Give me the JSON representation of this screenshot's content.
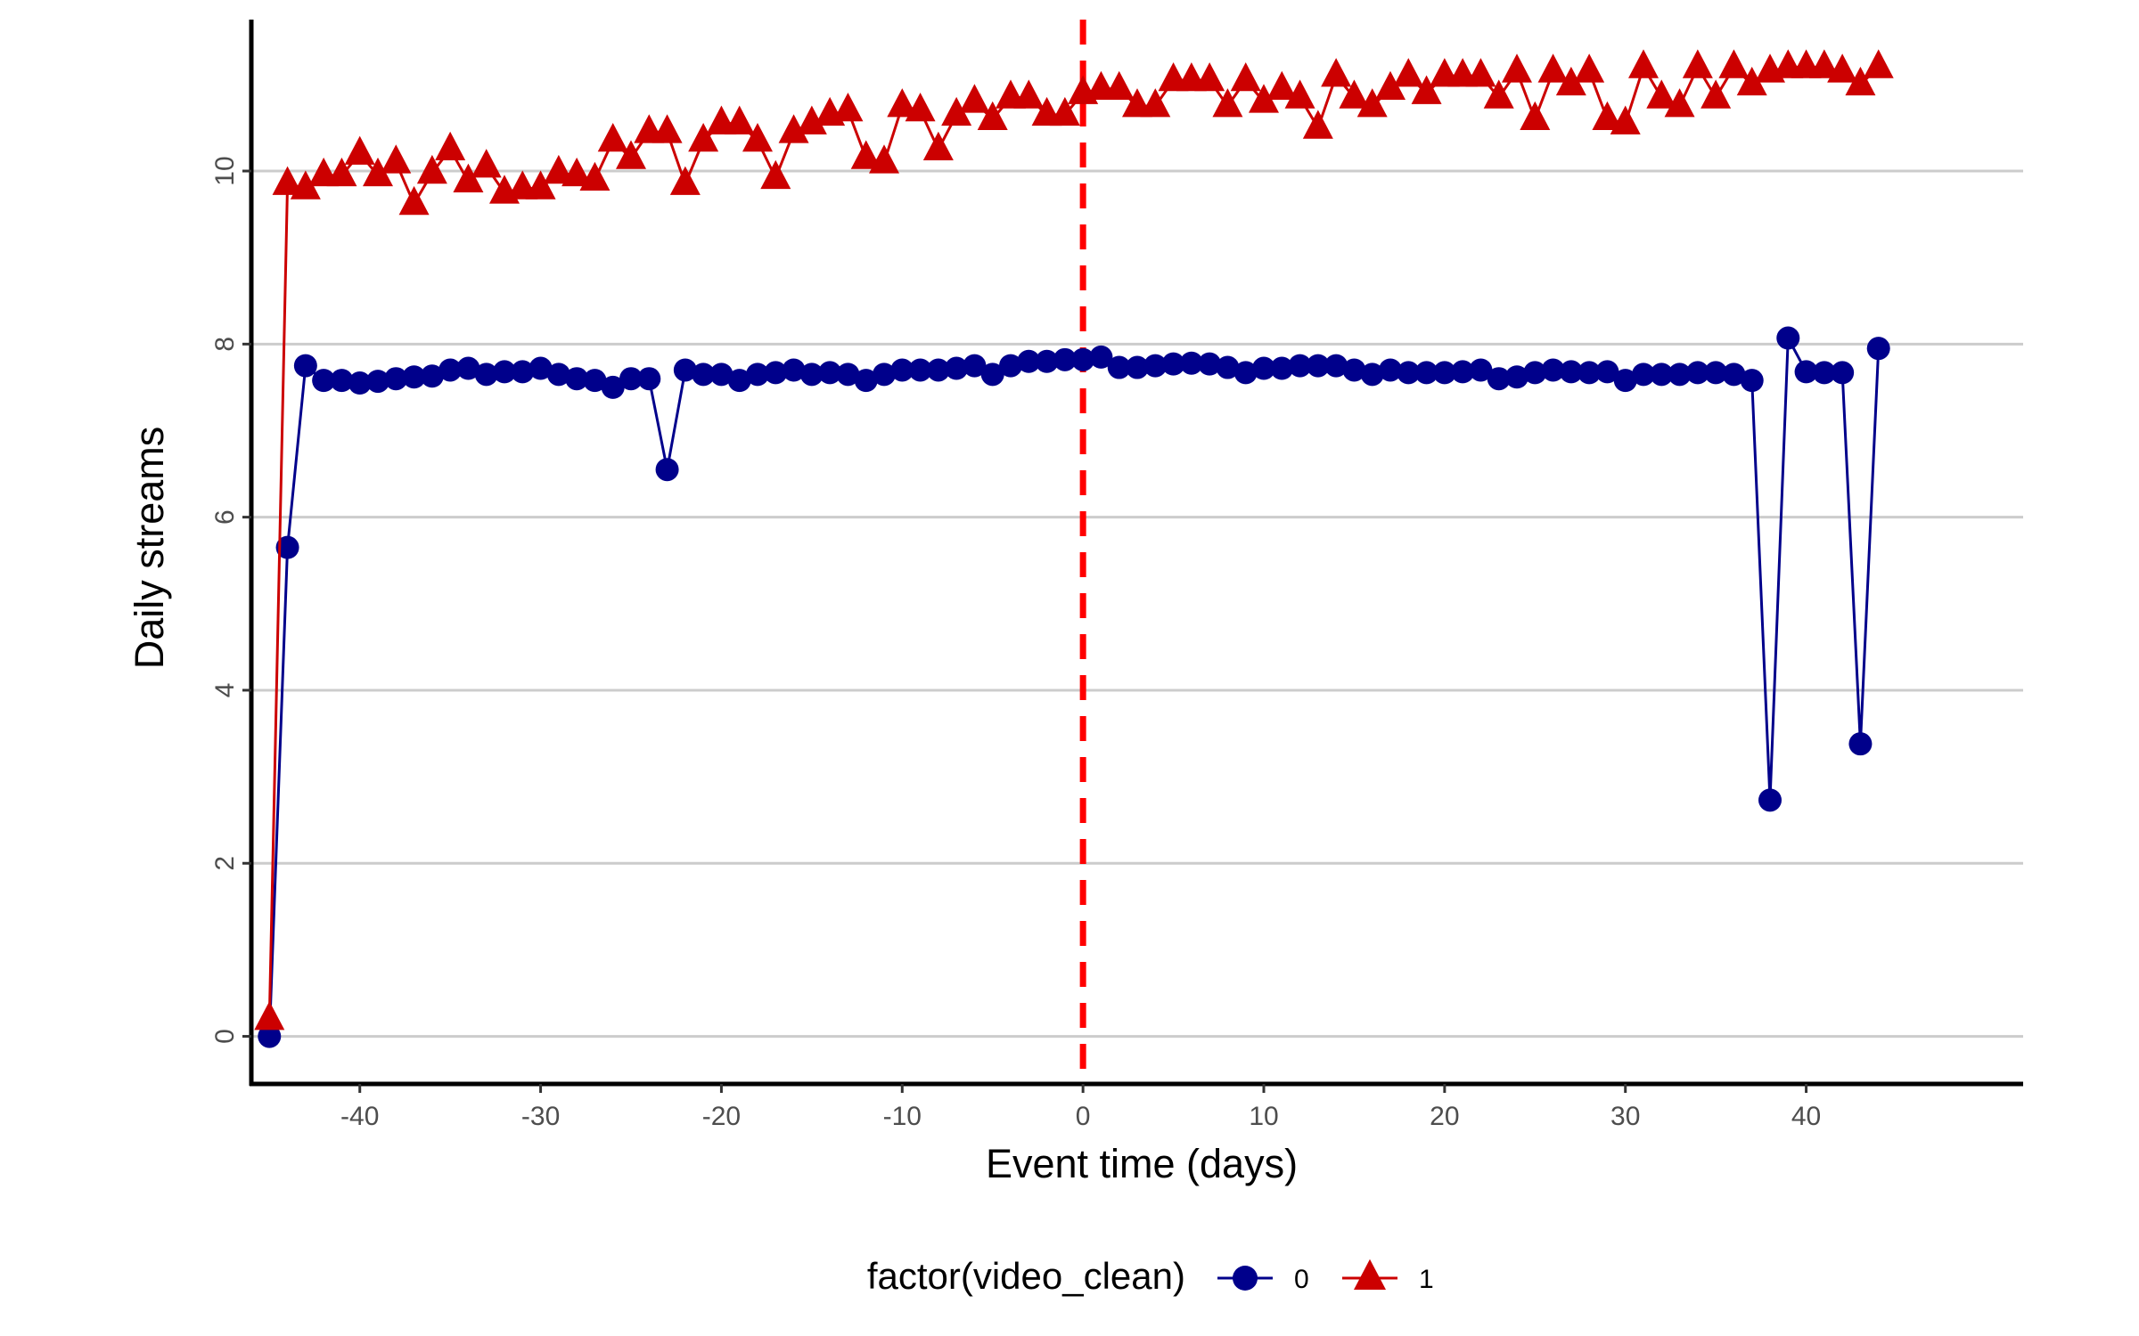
{
  "chart_data": {
    "type": "line",
    "xlabel": "Event time (days)",
    "ylabel": "Daily streams",
    "xlim": [
      -46,
      52
    ],
    "ylim": [
      -0.55,
      11.75
    ],
    "xticks": [
      -40,
      -30,
      -20,
      -10,
      0,
      10,
      20,
      30,
      40
    ],
    "yticks": [
      0,
      2,
      4,
      6,
      8,
      10
    ],
    "grid": "horizontal major",
    "vline": {
      "x": 0,
      "style": "dashed",
      "color": "#ff0000"
    },
    "legend": {
      "title": "factor(video_clean)",
      "position": "bottom"
    },
    "x": [
      -45,
      -44,
      -43,
      -42,
      -41,
      -40,
      -39,
      -38,
      -37,
      -36,
      -35,
      -34,
      -33,
      -32,
      -31,
      -30,
      -29,
      -28,
      -27,
      -26,
      -25,
      -24,
      -23,
      -22,
      -21,
      -20,
      -19,
      -18,
      -17,
      -16,
      -15,
      -14,
      -13,
      -12,
      -11,
      -10,
      -9,
      -8,
      -7,
      -6,
      -5,
      -4,
      -3,
      -2,
      -1,
      0,
      1,
      2,
      3,
      4,
      5,
      6,
      7,
      8,
      9,
      10,
      11,
      12,
      13,
      14,
      15,
      16,
      17,
      18,
      19,
      20,
      21,
      22,
      23,
      24,
      25,
      26,
      27,
      28,
      29,
      30,
      31,
      32,
      33,
      34,
      35,
      36,
      37,
      38,
      39,
      40,
      41,
      42,
      43,
      44
    ],
    "series": [
      {
        "name": "0",
        "color": "#00008b",
        "marker": "circle",
        "values": [
          0.0,
          5.65,
          7.75,
          7.58,
          7.58,
          7.55,
          7.57,
          7.6,
          7.62,
          7.63,
          7.7,
          7.72,
          7.65,
          7.68,
          7.68,
          7.72,
          7.65,
          7.6,
          7.58,
          7.5,
          7.6,
          7.6,
          6.55,
          7.7,
          7.65,
          7.65,
          7.58,
          7.65,
          7.67,
          7.7,
          7.65,
          7.67,
          7.65,
          7.58,
          7.65,
          7.7,
          7.7,
          7.7,
          7.72,
          7.75,
          7.65,
          7.75,
          7.8,
          7.8,
          7.82,
          7.82,
          7.85,
          7.73,
          7.73,
          7.75,
          7.77,
          7.78,
          7.77,
          7.73,
          7.67,
          7.72,
          7.72,
          7.75,
          7.75,
          7.75,
          7.7,
          7.65,
          7.7,
          7.67,
          7.67,
          7.67,
          7.68,
          7.7,
          7.6,
          7.62,
          7.67,
          7.7,
          7.68,
          7.67,
          7.68,
          7.58,
          7.65,
          7.65,
          7.65,
          7.67,
          7.67,
          7.65,
          7.58,
          2.73,
          8.07,
          7.68,
          7.67,
          7.67,
          3.38,
          7.95
        ]
      },
      {
        "name": "1",
        "color": "#cc0000",
        "marker": "triangle",
        "values": [
          0.2,
          9.85,
          9.8,
          9.95,
          9.95,
          10.2,
          9.95,
          10.1,
          9.62,
          9.98,
          10.25,
          9.88,
          10.05,
          9.75,
          9.8,
          9.8,
          9.98,
          9.95,
          9.9,
          10.35,
          10.15,
          10.45,
          10.45,
          9.85,
          10.35,
          10.55,
          10.55,
          10.35,
          9.92,
          10.45,
          10.55,
          10.65,
          10.7,
          10.15,
          10.1,
          10.75,
          10.7,
          10.25,
          10.65,
          10.8,
          10.6,
          10.85,
          10.85,
          10.65,
          10.65,
          10.9,
          10.95,
          10.95,
          10.75,
          10.75,
          11.05,
          11.05,
          11.05,
          10.75,
          11.05,
          10.8,
          10.95,
          10.85,
          10.5,
          11.1,
          10.85,
          10.75,
          10.95,
          11.1,
          10.9,
          11.1,
          11.1,
          11.1,
          10.85,
          11.15,
          10.6,
          11.15,
          11.0,
          11.15,
          10.6,
          10.55,
          11.2,
          10.85,
          10.75,
          11.2,
          10.85,
          11.2,
          11.0,
          11.15,
          11.2,
          11.2,
          11.2,
          11.15,
          11.0,
          11.2
        ]
      }
    ]
  }
}
